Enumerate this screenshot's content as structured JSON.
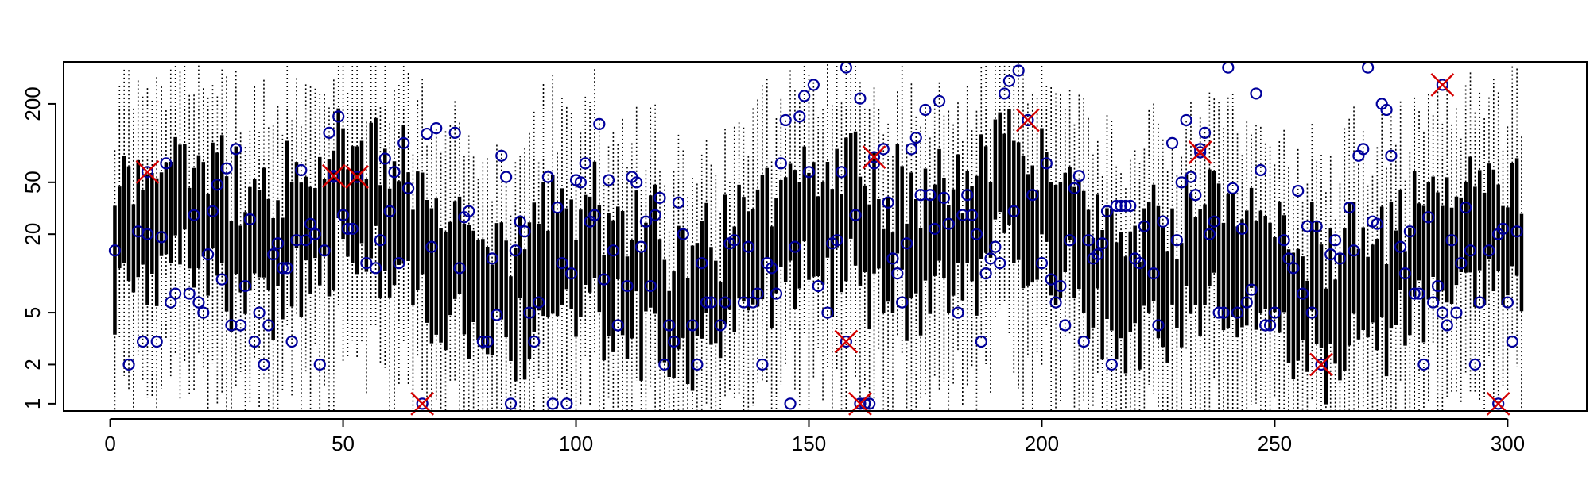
{
  "chart_data": {
    "type": "boxplot",
    "title": "",
    "xlabel": "",
    "ylabel": "",
    "y_scale": "log",
    "xlim": [
      -10,
      317
    ],
    "ylim": [
      0.88,
      420
    ],
    "x_ticks": [
      0,
      50,
      100,
      150,
      200,
      250,
      300
    ],
    "x_tick_labels": [
      "0",
      "50",
      "100",
      "150",
      "200",
      "250",
      "300"
    ],
    "y_ticks": [
      1,
      2,
      5,
      20,
      50,
      200
    ],
    "y_tick_labels": [
      "1",
      "2",
      "5",
      "20",
      "50",
      "200"
    ],
    "n_boxes": 303,
    "seed": 7,
    "whisker_style": "dotted",
    "box_style": "thick-line",
    "outlier_color": "#00009c",
    "marked_color": "#d40000",
    "outliers_sample": [
      [
        1,
        15
      ],
      [
        4,
        2
      ],
      [
        6,
        21
      ],
      [
        7,
        3
      ],
      [
        8,
        20
      ],
      [
        10,
        3
      ],
      [
        11,
        19
      ],
      [
        12,
        70
      ],
      [
        13,
        6
      ],
      [
        14,
        7
      ],
      [
        17,
        7
      ],
      [
        18,
        28
      ],
      [
        19,
        6
      ],
      [
        20,
        5
      ],
      [
        21,
        14
      ],
      [
        22,
        30
      ],
      [
        23,
        48
      ],
      [
        24,
        9
      ],
      [
        25,
        64
      ],
      [
        26,
        4
      ],
      [
        27,
        90
      ],
      [
        28,
        4
      ],
      [
        29,
        8
      ],
      [
        30,
        26
      ],
      [
        31,
        3
      ],
      [
        32,
        5
      ],
      [
        33,
        2
      ],
      [
        34,
        4
      ],
      [
        35,
        14
      ],
      [
        36,
        17
      ],
      [
        37,
        11
      ],
      [
        38,
        11
      ],
      [
        39,
        3
      ],
      [
        40,
        18
      ],
      [
        41,
        62
      ],
      [
        42,
        18
      ],
      [
        43,
        24
      ],
      [
        44,
        20
      ],
      [
        45,
        2
      ],
      [
        46,
        15
      ],
      [
        47,
        120
      ],
      [
        48,
        55
      ],
      [
        49,
        160
      ],
      [
        50,
        28
      ],
      [
        51,
        22
      ],
      [
        52,
        22
      ],
      [
        55,
        12
      ],
      [
        57,
        11
      ],
      [
        58,
        18
      ],
      [
        59,
        76
      ],
      [
        60,
        30
      ],
      [
        61,
        60
      ],
      [
        62,
        12
      ],
      [
        63,
        100
      ],
      [
        64,
        45
      ],
      [
        68,
        118
      ],
      [
        69,
        16
      ],
      [
        70,
        130
      ],
      [
        74,
        120
      ],
      [
        75,
        11
      ],
      [
        76,
        27
      ],
      [
        77,
        30
      ],
      [
        80,
        3
      ],
      [
        81,
        3
      ],
      [
        82,
        13
      ],
      [
        83,
        4.8
      ],
      [
        84,
        80
      ],
      [
        85,
        55
      ],
      [
        86,
        1
      ],
      [
        87,
        15
      ],
      [
        88,
        25
      ],
      [
        89,
        21
      ],
      [
        90,
        5
      ],
      [
        91,
        3
      ],
      [
        92,
        6
      ],
      [
        94,
        55
      ],
      [
        95,
        1
      ],
      [
        96,
        32
      ],
      [
        97,
        12
      ],
      [
        98,
        1
      ],
      [
        99,
        10
      ],
      [
        100,
        52
      ],
      [
        101,
        50
      ],
      [
        102,
        70
      ],
      [
        103,
        25
      ],
      [
        104,
        28
      ],
      [
        105,
        140
      ],
      [
        106,
        9
      ],
      [
        107,
        52
      ],
      [
        108,
        15
      ],
      [
        109,
        4
      ],
      [
        111,
        8
      ],
      [
        112,
        55
      ],
      [
        113,
        50
      ],
      [
        114,
        16
      ],
      [
        115,
        25
      ],
      [
        116,
        8
      ],
      [
        117,
        28
      ],
      [
        118,
        38
      ],
      [
        119,
        2
      ],
      [
        120,
        4
      ],
      [
        121,
        3
      ],
      [
        122,
        35
      ],
      [
        123,
        20
      ],
      [
        125,
        4
      ],
      [
        126,
        2
      ],
      [
        127,
        12
      ],
      [
        128,
        6
      ],
      [
        129,
        6
      ],
      [
        131,
        4
      ],
      [
        132,
        6
      ],
      [
        133,
        17
      ],
      [
        134,
        18
      ],
      [
        136,
        6
      ],
      [
        137,
        16
      ],
      [
        138,
        6
      ],
      [
        139,
        7
      ],
      [
        140,
        2
      ],
      [
        141,
        12
      ],
      [
        142,
        11
      ],
      [
        143,
        7
      ],
      [
        144,
        70
      ],
      [
        145,
        150
      ],
      [
        146,
        1
      ],
      [
        147,
        16
      ],
      [
        148,
        160
      ],
      [
        149,
        230
      ],
      [
        150,
        60
      ],
      [
        151,
        280
      ],
      [
        152,
        8
      ],
      [
        154,
        5
      ],
      [
        155,
        17
      ],
      [
        156,
        18
      ],
      [
        157,
        60
      ],
      [
        158,
        380
      ],
      [
        160,
        28
      ],
      [
        161,
        220
      ],
      [
        162,
        1
      ],
      [
        163,
        1
      ],
      [
        164,
        70
      ],
      [
        166,
        90
      ],
      [
        167,
        35
      ],
      [
        168,
        13
      ],
      [
        169,
        10
      ],
      [
        170,
        6
      ],
      [
        171,
        17
      ],
      [
        172,
        90
      ],
      [
        173,
        110
      ],
      [
        174,
        40
      ],
      [
        175,
        180
      ],
      [
        176,
        40
      ],
      [
        177,
        22
      ],
      [
        178,
        210
      ],
      [
        179,
        38
      ],
      [
        180,
        24
      ],
      [
        182,
        5
      ],
      [
        183,
        28
      ],
      [
        184,
        40
      ],
      [
        185,
        28
      ],
      [
        186,
        20
      ],
      [
        187,
        3
      ],
      [
        188,
        10
      ],
      [
        189,
        13
      ],
      [
        190,
        16
      ],
      [
        191,
        12
      ],
      [
        192,
        240
      ],
      [
        193,
        300
      ],
      [
        194,
        30
      ],
      [
        195,
        360
      ],
      [
        197,
        150
      ],
      [
        198,
        40
      ],
      [
        200,
        12
      ],
      [
        201,
        70
      ],
      [
        202,
        9
      ],
      [
        203,
        6
      ],
      [
        204,
        8
      ],
      [
        205,
        4
      ],
      [
        206,
        18
      ],
      [
        207,
        45
      ],
      [
        208,
        56
      ],
      [
        209,
        3
      ],
      [
        210,
        18
      ],
      [
        211,
        13
      ],
      [
        212,
        14
      ],
      [
        213,
        17
      ],
      [
        214,
        30
      ],
      [
        215,
        2
      ],
      [
        216,
        33
      ],
      [
        217,
        33
      ],
      [
        218,
        33
      ],
      [
        219,
        33
      ],
      [
        220,
        13
      ],
      [
        221,
        12
      ],
      [
        222,
        23
      ],
      [
        224,
        10
      ],
      [
        225,
        4
      ],
      [
        226,
        25
      ],
      [
        228,
        100
      ],
      [
        229,
        18
      ],
      [
        230,
        50
      ],
      [
        231,
        150
      ],
      [
        232,
        55
      ],
      [
        233,
        40
      ],
      [
        234,
        90
      ],
      [
        235,
        120
      ],
      [
        236,
        20
      ],
      [
        237,
        25
      ],
      [
        238,
        5
      ],
      [
        239,
        5
      ],
      [
        240,
        380
      ],
      [
        241,
        45
      ],
      [
        242,
        5
      ],
      [
        243,
        22
      ],
      [
        244,
        6
      ],
      [
        245,
        7.5
      ],
      [
        246,
        240
      ],
      [
        247,
        62
      ],
      [
        248,
        4
      ],
      [
        249,
        4
      ],
      [
        250,
        5
      ],
      [
        252,
        18
      ],
      [
        253,
        13
      ],
      [
        254,
        11
      ],
      [
        255,
        43
      ],
      [
        256,
        7
      ],
      [
        257,
        23
      ],
      [
        258,
        5
      ],
      [
        259,
        23
      ],
      [
        262,
        14
      ],
      [
        263,
        18
      ],
      [
        264,
        13
      ],
      [
        266,
        32
      ],
      [
        267,
        15
      ],
      [
        268,
        80
      ],
      [
        269,
        90
      ],
      [
        270,
        380
      ],
      [
        271,
        25
      ],
      [
        272,
        24
      ],
      [
        273,
        200
      ],
      [
        274,
        180
      ],
      [
        275,
        80
      ],
      [
        277,
        16
      ],
      [
        278,
        10
      ],
      [
        279,
        21
      ],
      [
        280,
        7
      ],
      [
        281,
        7
      ],
      [
        282,
        2
      ],
      [
        283,
        27
      ],
      [
        284,
        6
      ],
      [
        285,
        8
      ],
      [
        286,
        5
      ],
      [
        287,
        4
      ],
      [
        288,
        18
      ],
      [
        289,
        5
      ],
      [
        290,
        12
      ],
      [
        291,
        32
      ],
      [
        292,
        15
      ],
      [
        293,
        2
      ],
      [
        294,
        6
      ],
      [
        296,
        15
      ],
      [
        298,
        20
      ],
      [
        299,
        22
      ],
      [
        300,
        6
      ],
      [
        301,
        3
      ],
      [
        302,
        21
      ]
    ],
    "marked_points": [
      [
        8,
        60
      ],
      [
        48,
        56
      ],
      [
        53,
        55
      ],
      [
        67,
        1
      ],
      [
        158,
        3
      ],
      [
        161,
        1
      ],
      [
        164,
        78
      ],
      [
        197,
        150
      ],
      [
        234,
        85
      ],
      [
        260,
        2
      ],
      [
        286,
        280
      ],
      [
        298,
        1
      ]
    ]
  }
}
